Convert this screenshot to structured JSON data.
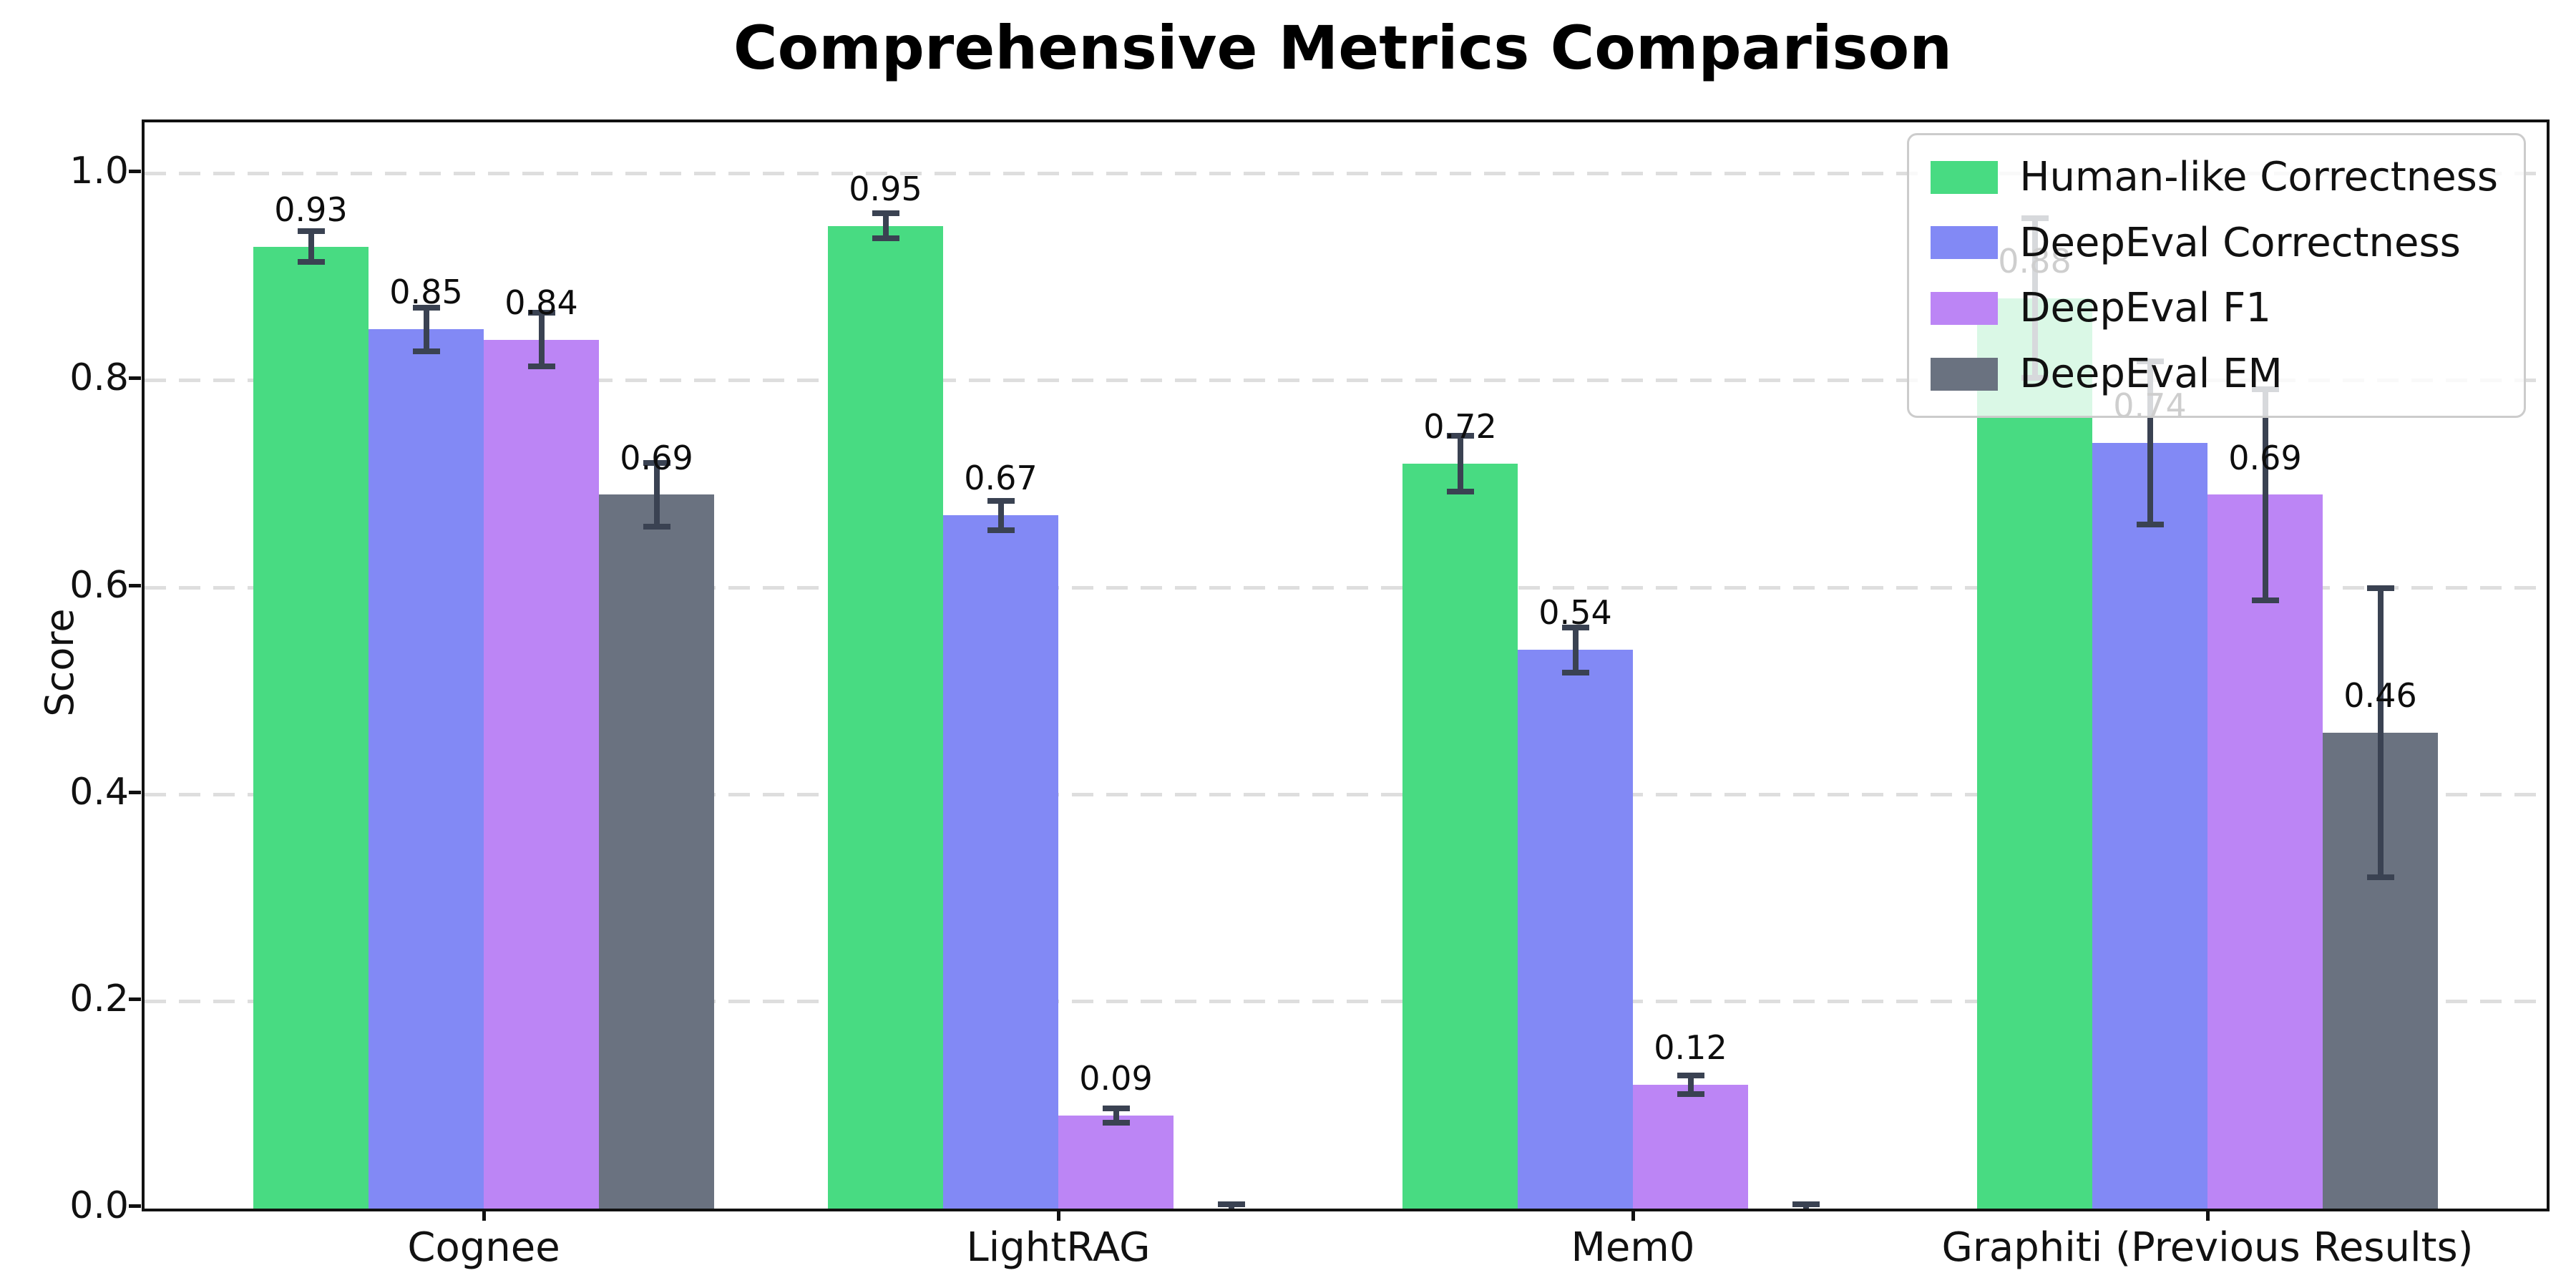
{
  "title": "Comprehensive Metrics Comparison",
  "y_axis_label": "Score",
  "chart_data": {
    "type": "bar",
    "title": "Comprehensive Metrics Comparison",
    "xlabel": "",
    "ylabel": "Score",
    "ylim": [
      0,
      1.05
    ],
    "grid": "horizontal-dashed",
    "legend_position": "upper right",
    "categories": [
      "Cognee",
      "LightRAG",
      "Mem0",
      "Graphiti (Previous Results)"
    ],
    "y_ticks": [
      {
        "label": "0.0",
        "value": 0.0
      },
      {
        "label": "0.2",
        "value": 0.2
      },
      {
        "label": "0.4",
        "value": 0.4
      },
      {
        "label": "0.6",
        "value": 0.6
      },
      {
        "label": "0.8",
        "value": 0.8
      },
      {
        "label": "1.0",
        "value": 1.0
      }
    ],
    "series": [
      {
        "name": "Human-like Correctness",
        "color": "#48db82",
        "values": [
          0.93,
          0.95,
          0.72,
          0.88
        ],
        "errors": [
          0.015,
          0.012,
          0.027,
          0.077
        ],
        "bar_labels": [
          "0.93",
          "0.95",
          "0.72",
          "0.88"
        ]
      },
      {
        "name": "DeepEval Correctness",
        "color": "#8289f5",
        "values": [
          0.85,
          0.67,
          0.54,
          0.74
        ],
        "errors": [
          0.021,
          0.014,
          0.022,
          0.079
        ],
        "bar_labels": [
          "0.85",
          "0.67",
          "0.54",
          "0.74"
        ]
      },
      {
        "name": "DeepEval F1",
        "color": "#bc85f5",
        "values": [
          0.84,
          0.09,
          0.12,
          0.69
        ],
        "errors": [
          0.026,
          0.007,
          0.009,
          0.102
        ],
        "bar_labels": [
          "0.84",
          "0.09",
          "0.12",
          "0.69"
        ]
      },
      {
        "name": "DeepEval EM",
        "color": "#6a7280",
        "values": [
          0.69,
          0.0,
          0.0,
          0.46
        ],
        "errors": [
          0.031,
          0.004,
          0.004,
          0.14
        ],
        "bar_labels": [
          "0.69",
          "",
          "",
          "0.46"
        ]
      }
    ],
    "colors": {
      "error_bar": "#3a4252",
      "gridline": "#dedede",
      "spine": "#111111",
      "background": "#ffffff"
    }
  }
}
